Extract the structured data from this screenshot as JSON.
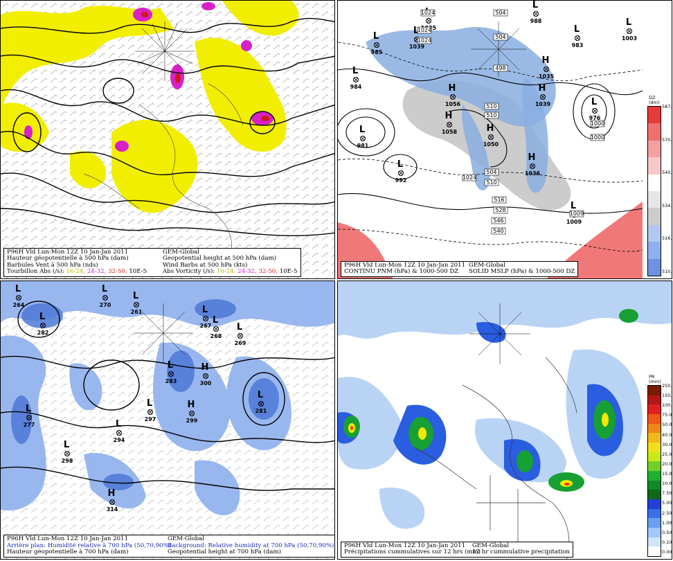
{
  "panels": [
    {
      "id": "500hPa-vorticity",
      "caption": {
        "rows": [
          [
            "P96H Vld Lun-Mon 12Z 10 Jan-Jan 2011",
            "GEM-Global"
          ],
          [
            "Hauteur géopotentielle à 500 hPa (dam)",
            "Geopotential height at 500 hPa (dam)"
          ],
          [
            "Barbules Vent à 500 hPa (nds)",
            "Wind Barbs at 500 hPa (kts)"
          ]
        ],
        "legend_fr": "Tourbillon Abs (/s):",
        "legend_en": "Abs Vorticity (/s):",
        "vort_ranges": [
          "16-24,",
          "24-32,",
          "32-50,"
        ],
        "vort_unit": "10E-5",
        "vort_colors": [
          "#d8d800",
          "#cc22cc",
          "#cc2222"
        ]
      }
    },
    {
      "id": "mslp-thickness",
      "caption": {
        "rows": [
          [
            "P96H Vld Lun-Mon 12Z 10 Jan-Jan 2011",
            "GEM-Global"
          ],
          [
            "CONTINU PNM  (hPa) & 1000-500 DZ",
            "SOLID  MSLP (hPa) & 1000-500 DZ"
          ]
        ]
      },
      "colorbar": {
        "title": "DZ",
        "unit": "(dm)",
        "labels": [
          "587.55",
          "570.00",
          "540.00",
          "534.00",
          "516.00",
          "510.00"
        ]
      },
      "pressure_centers": [
        {
          "type": "L",
          "value": "985"
        },
        {
          "type": "L",
          "value": "984"
        },
        {
          "type": "L",
          "value": "981"
        },
        {
          "type": "L",
          "value": "992"
        },
        {
          "type": "L",
          "value": "1035"
        },
        {
          "type": "L",
          "value": "1039"
        },
        {
          "type": "H",
          "value": "1056"
        },
        {
          "type": "H",
          "value": "1058"
        },
        {
          "type": "H",
          "value": "1050"
        },
        {
          "type": "H",
          "value": "1036"
        },
        {
          "type": "L",
          "value": "1009"
        },
        {
          "type": "H",
          "value": "1039"
        },
        {
          "type": "H",
          "value": "1035"
        },
        {
          "type": "L",
          "value": "976"
        },
        {
          "type": "L",
          "value": "1003"
        },
        {
          "type": "L",
          "value": "983"
        },
        {
          "type": "L",
          "value": "988"
        }
      ],
      "contour_labels": [
        "1024",
        "1024",
        "1024",
        "1024",
        "1000",
        "1000",
        "1009",
        "504",
        "504",
        "498",
        "510",
        "510",
        "504",
        "510",
        "516",
        "528",
        "546",
        "540"
      ]
    },
    {
      "id": "700hPa-humidity",
      "caption": {
        "rows": [
          [
            "P96H Vld Lun-Mon 12Z 10 Jan-Jan 2011",
            "GEM-Global"
          ],
          [
            "Arrière plan: Humidité relative à 700 hPa (50,70,90%)",
            "Background: Relative humidity at 700 hPa (50,70,90%)"
          ],
          [
            "Hauteur géopotentielle à 700 hPa (dam)",
            "Geopotential height at 700 hPa (dam)"
          ]
        ]
      },
      "pressure_centers": [
        {
          "type": "L",
          "value": "264"
        },
        {
          "type": "L",
          "value": "270"
        },
        {
          "type": "L",
          "value": "261"
        },
        {
          "type": "L",
          "value": "282"
        },
        {
          "type": "L",
          "value": "267"
        },
        {
          "type": "L",
          "value": "268"
        },
        {
          "type": "L",
          "value": "269"
        },
        {
          "type": "L",
          "value": "283"
        },
        {
          "type": "H",
          "value": "300"
        },
        {
          "type": "L",
          "value": "297"
        },
        {
          "type": "H",
          "value": "299"
        },
        {
          "type": "L",
          "value": "281"
        },
        {
          "type": "L",
          "value": "277"
        },
        {
          "type": "L",
          "value": "294"
        },
        {
          "type": "L",
          "value": "298"
        },
        {
          "type": "H",
          "value": "314"
        }
      ]
    },
    {
      "id": "12h-precip",
      "caption": {
        "rows": [
          [
            "P96H Vld Lun-Mon 12Z 10 Jan-Jan 2011",
            "GEM-Global"
          ],
          [
            "Précipitations cummulatives sur 12 hrs (mm)",
            "12 hr cummulative precipitation"
          ]
        ]
      },
      "colorbar": {
        "title": "PR",
        "unit": "(mm)",
        "labels": [
          "250.00",
          "150.00",
          "100.00",
          "75.00",
          "50.00",
          "40.00",
          "30.00",
          "25.00",
          "20.00",
          "15.00",
          "10.00",
          "7.50",
          "5.00",
          "2.50",
          "1.00",
          "0.50",
          "0.10",
          "0.00"
        ]
      }
    }
  ]
}
